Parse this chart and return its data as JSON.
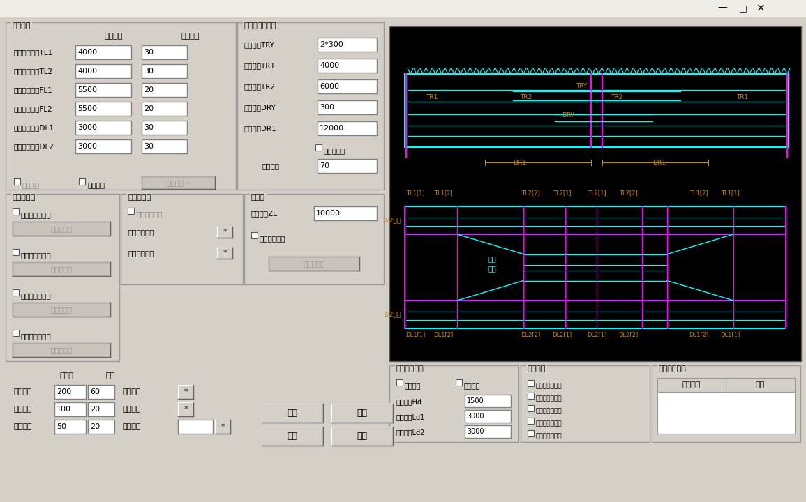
{
  "bg_color": "#d4d0c8",
  "canvas_bg": "#000000",
  "cyan_color": "#00ffff",
  "magenta_color": "#ff00ff",
  "orange_color": "#cc8800",
  "white_color": "#ffffff",
  "border_color": "#808080",
  "panel1_title": "板厚变化",
  "panel2_title": "水平加劲肋布置",
  "panel3_title": "加劲肋详细",
  "panel4_title": "加劲肋选线",
  "panel5_title": "过焊孔",
  "col1": "加厚长度",
  "col2": "加厚厚度",
  "rows": [
    {
      "label": "顶板边墩加厚TL1",
      "v1": "4000",
      "v2": "30"
    },
    {
      "label": "顶板中墩加厚TL2",
      "v1": "4000",
      "v2": "30"
    },
    {
      "label": "腹板边墩加厚FL1",
      "v1": "5500",
      "v2": "20"
    },
    {
      "label": "腹板中墩加厚FL2",
      "v1": "5500",
      "v2": "20"
    },
    {
      "label": "底板边墩加厚DL1",
      "v1": "3000",
      "v2": "30"
    },
    {
      "label": "底板中墩加厚DL2",
      "v1": "3000",
      "v2": "30"
    }
  ],
  "right_labels": [
    {
      "label": "纵肋位置TRY",
      "value": "2*300"
    },
    {
      "label": "边墩纵肋TR1",
      "value": "4000"
    },
    {
      "label": "中墩纵肋TR2",
      "value": "6000"
    },
    {
      "label": "纵肋位置DRY",
      "value": "300"
    },
    {
      "label": "中墩纵肋DR1",
      "value": "12000"
    }
  ],
  "hz_cut": "水平肋截断",
  "jj_label": "截断间隔",
  "jj_value": "70",
  "zl_label": "中墩范围ZL",
  "zl_value": "10000",
  "custom_weld": "自定义过焊孔",
  "weld_btn": "纵肋过焊孔",
  "check1": "设定边梁",
  "check2": "自由尺寸",
  "detail_btn": "详细输入→",
  "custom_h": "自定义横肋类型",
  "h_btn": "横向加劲肋",
  "custom_v": "自定义纵肋类型",
  "v_btn": "纵向加劲肋",
  "custom_plane": "自定义平面布置",
  "plane_btn": "加劲肋平面",
  "free_hz": "自由布置水平肋",
  "hz_btn": "水平加劲肋",
  "custom_add": "自定义加劲肋",
  "top_line": "顶板加劲肋线",
  "bot_line": "底板加劲肋线",
  "scale_title1": "立平面",
  "scale_title2": "断面",
  "scale_rows": [
    {
      "label": "总图比例",
      "v1": "200",
      "v2": "60"
    },
    {
      "label": "梁图比例",
      "v1": "100",
      "v2": "20"
    },
    {
      "label": "横梁比例",
      "v1": "50",
      "v2": "20"
    }
  ],
  "draw_v": "绘制纵梁",
  "draw_h": "绘制横梁",
  "section_pos": "断面位置",
  "btn_ok": "确定",
  "btn_cancel": "取消",
  "btn_open": "打开",
  "btn_save": "保存",
  "bottom_section1": "端部高度减小",
  "bottom_section2": "端部设置",
  "bottom_section3": "横梁整体设定",
  "check_left": "左端变高",
  "check_right": "右端变高",
  "end_labels": [
    {
      "label": "端部梁高Hd",
      "value": "1500"
    },
    {
      "label": "端部长度Ld1",
      "value": "3000"
    },
    {
      "label": "端部长度Ld2",
      "value": "3000"
    }
  ],
  "end_checks": [
    "端横梁顶板对齐",
    "端横梁端部倒角",
    "支点混凝土等厚",
    "绘制单梁中心线",
    "平面标注道路线"
  ],
  "right_table_title1": "纵向位置",
  "right_table_title2": "设置",
  "winctl": [
    "—",
    "□",
    "×"
  ]
}
